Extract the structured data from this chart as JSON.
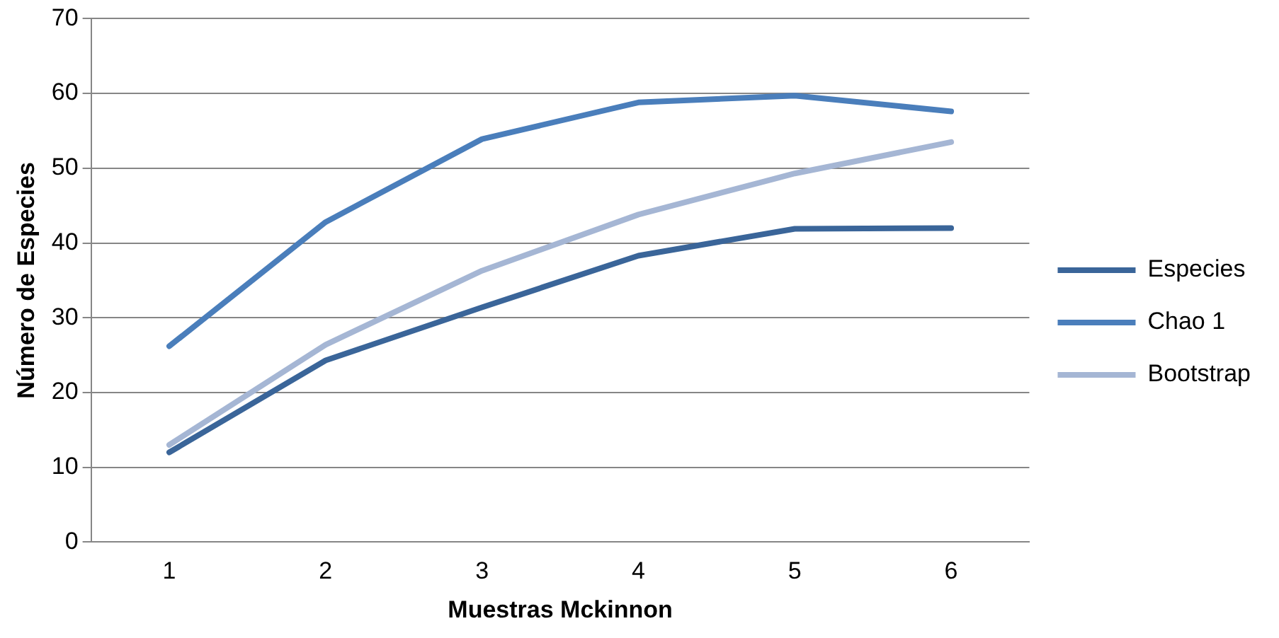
{
  "chart_data": {
    "type": "line",
    "xlabel": "Muestras Mckinnon",
    "ylabel": "Número de Especies",
    "categories": [
      "1",
      "2",
      "3",
      "4",
      "5",
      "6"
    ],
    "series": [
      {
        "name": "Especies",
        "color": "#3a6599",
        "values": [
          12,
          24.3,
          31.4,
          38.3,
          41.9,
          42
        ]
      },
      {
        "name": "Chao 1",
        "color": "#4a7ebb",
        "values": [
          26.2,
          42.8,
          53.9,
          58.8,
          59.7,
          57.6
        ]
      },
      {
        "name": "Bootstrap",
        "color": "#a5b6d4",
        "values": [
          13,
          26.4,
          36.3,
          43.8,
          49.3,
          53.5
        ]
      }
    ],
    "ylim": [
      0,
      70
    ],
    "yticks": [
      0,
      10,
      20,
      30,
      40,
      50,
      60,
      70
    ],
    "grid": "y",
    "legend": "right",
    "marker": "none",
    "line_style": "solid"
  }
}
